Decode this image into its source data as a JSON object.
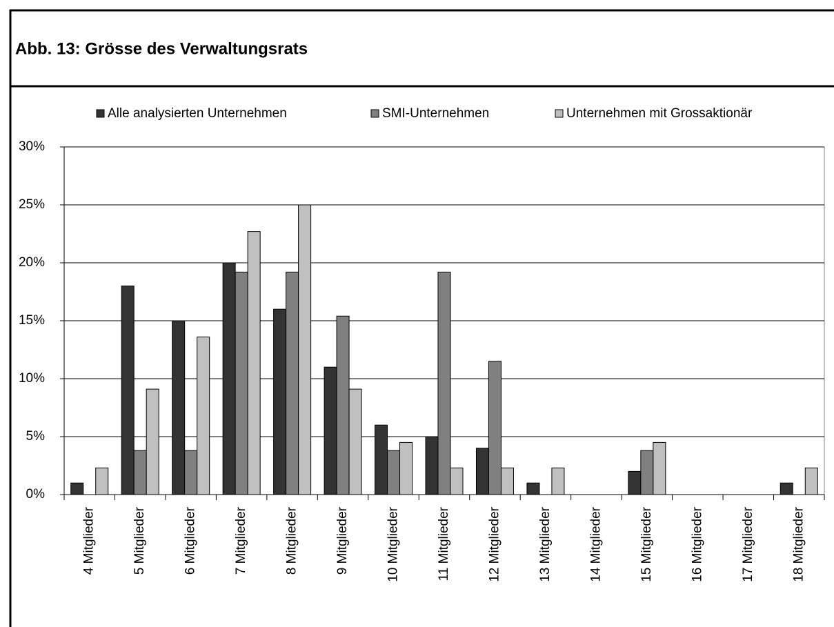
{
  "chart_data": {
    "type": "bar",
    "title": "Abb. 13:  Grösse des Verwaltungsrats",
    "categories": [
      "4 Mitglieder",
      "5 Mitglieder",
      "6 Mitglieder",
      "7 Mitglieder",
      "8 Mitglieder",
      "9 Mitglieder",
      "10 Mitglieder",
      "11 Mitglieder",
      "12 Mitglieder",
      "13 Mitglieder",
      "14 Mitglieder",
      "15 Mitglieder",
      "16 Mitglieder",
      "17 Mitglieder",
      "18 Mitglieder"
    ],
    "series": [
      {
        "name": "Alle analysierten Unternehmen",
        "color": "#333333",
        "values": [
          1,
          18,
          15,
          20,
          16,
          11,
          6,
          5,
          4,
          1,
          0,
          2,
          0,
          0,
          1
        ]
      },
      {
        "name": "SMI-Unternehmen",
        "color": "#808080",
        "values": [
          0,
          3.8,
          3.8,
          19.2,
          19.2,
          15.4,
          3.8,
          19.2,
          11.5,
          0,
          0,
          3.8,
          0,
          0,
          0
        ]
      },
      {
        "name": "Unternehmen mit Grossaktionär",
        "color": "#c0c0c0",
        "values": [
          2.3,
          9.1,
          13.6,
          22.7,
          25,
          9.1,
          4.5,
          2.3,
          2.3,
          2.3,
          0,
          4.5,
          0,
          0,
          2.3
        ]
      }
    ],
    "ylim": [
      0,
      30
    ],
    "yticks": [
      {
        "value": 0,
        "label": "0%"
      },
      {
        "value": 5,
        "label": "5%"
      },
      {
        "value": 10,
        "label": "10%"
      },
      {
        "value": 15,
        "label": "15%"
      },
      {
        "value": 20,
        "label": "20%"
      },
      {
        "value": 25,
        "label": "25%"
      },
      {
        "value": 30,
        "label": "30%"
      }
    ],
    "grid": true,
    "legend": "top"
  }
}
